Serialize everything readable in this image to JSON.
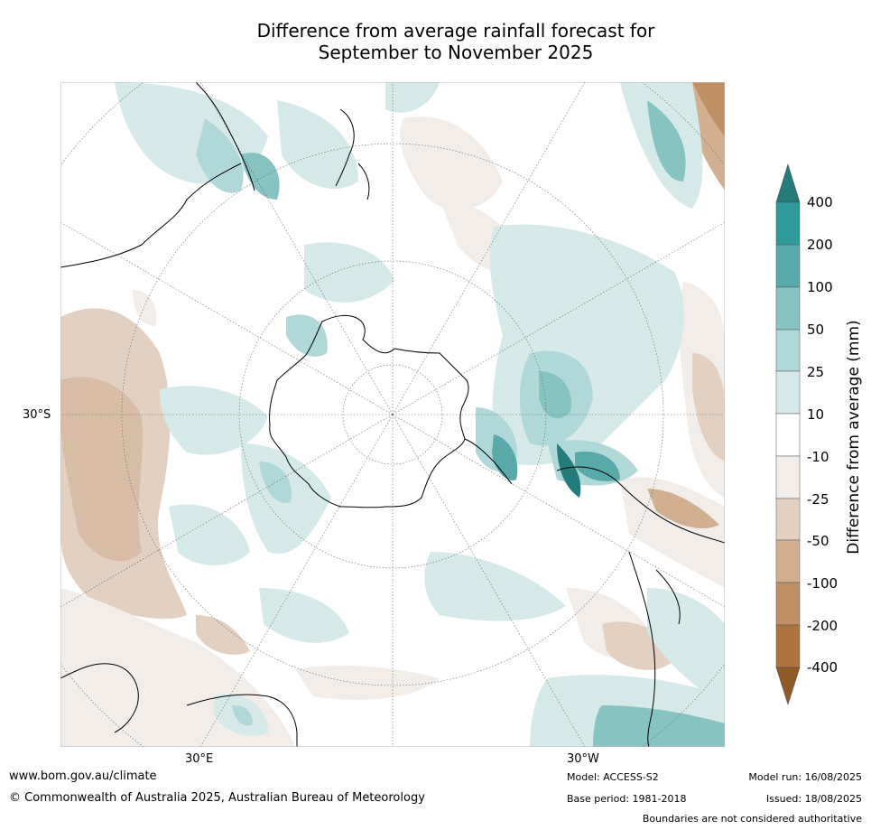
{
  "title_line1": "Difference from average rainfall forecast for",
  "title_line2": "September to November 2025",
  "map": {
    "projection": "south-polar-stereographic",
    "lat_label": "30°S",
    "lon_labels": {
      "east": "30°E",
      "west": "30°W"
    }
  },
  "colorbar": {
    "title": "Difference from average (mm)",
    "ticks": [
      "400",
      "200",
      "100",
      "50",
      "25",
      "10",
      "-10",
      "-25",
      "-50",
      "-100",
      "-200",
      "-400"
    ],
    "colors": {
      "above_400": "#237b7b",
      "200_400": "#2e9a9a",
      "100_200": "#58aaaa",
      "50_100": "#88c3c3",
      "25_50": "#b1d8d8",
      "10_25": "#d6e9e9",
      "neutral": "#ffffff",
      "m10_m25": "#f2ede8",
      "m25_m50": "#e3d0c0",
      "m50_m100": "#d1b092",
      "m100_m200": "#bf8f65",
      "m200_m400": "#ad743f",
      "below_m400": "#8f5a25"
    }
  },
  "footer": {
    "url": "www.bom.gov.au/climate",
    "copyright": "© Commonwealth of Australia 2025, Australian Bureau of Meteorology",
    "model": "Model: ACCESS-S2",
    "base_period": "Base period: 1981-2018",
    "model_run": "Model run: 16/08/2025",
    "issued": "Issued: 18/08/2025",
    "disclaimer": "Boundaries are not considered authoritative"
  }
}
